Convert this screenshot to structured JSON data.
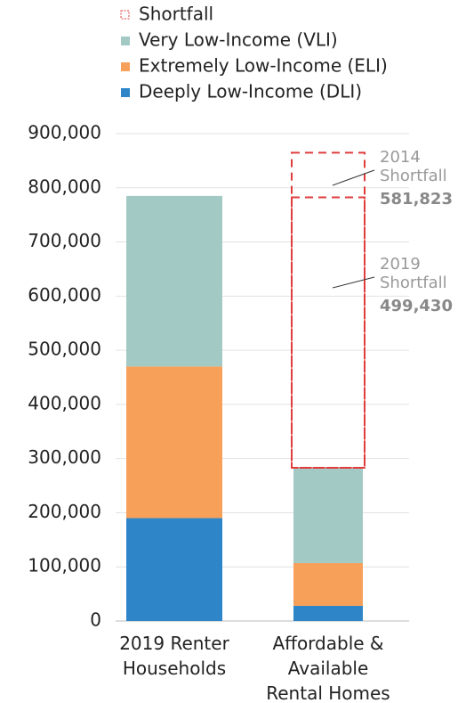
{
  "chart_data": {
    "type": "stacked_bar",
    "categories": [
      "2019 Renter Households",
      "Affordable & Available Rental Homes"
    ],
    "series": [
      {
        "name": "Deeply Low-Income (DLI)",
        "color": "#2e86c8",
        "values": [
          190000,
          28000
        ]
      },
      {
        "name": "Extremely Low-Income (ELI)",
        "color": "#f7a05a",
        "values": [
          280000,
          79000
        ]
      },
      {
        "name": "Very Low-Income (VLI)",
        "color": "#a3c9c5",
        "values": [
          315000,
          176000
        ]
      },
      {
        "name": "Shortfall",
        "color": "#e03c3c",
        "dashed": true,
        "values": [
          null,
          499430
        ],
        "value_labels": [
          null,
          "499,430"
        ]
      }
    ],
    "annotations": [
      {
        "year": "2014",
        "text": "Shortfall",
        "value": 581823,
        "value_label": "581,823"
      },
      {
        "year": "2019",
        "text": "Shortfall"
      }
    ],
    "ylim": [
      0,
      900000
    ],
    "yticks": [
      {
        "value": 0,
        "label": "0"
      },
      {
        "value": 100000,
        "label": "100,000"
      },
      {
        "value": 200000,
        "label": "200,000"
      },
      {
        "value": 300000,
        "label": "300,000"
      },
      {
        "value": 400000,
        "label": "400,000"
      },
      {
        "value": 500000,
        "label": "500,000"
      },
      {
        "value": 600000,
        "label": "600,000"
      },
      {
        "value": 700000,
        "label": "700,000"
      },
      {
        "value": 800000,
        "label": "800,000"
      },
      {
        "value": 900000,
        "label": "900,000"
      }
    ],
    "grid": true
  }
}
